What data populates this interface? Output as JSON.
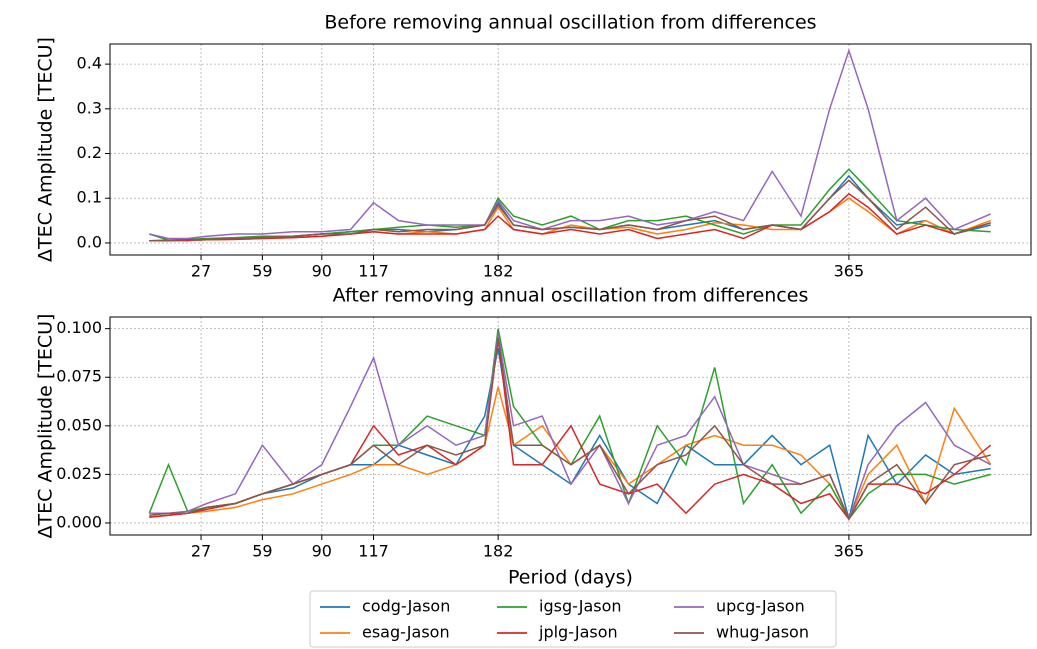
{
  "chart_data": [
    {
      "type": "line",
      "title": "Before removing annual oscillation from differences",
      "ylabel": "ΔTEC Amplitude [TECU]",
      "x": [
        0,
        10,
        20,
        30,
        45,
        59,
        75,
        90,
        105,
        117,
        130,
        145,
        160,
        175,
        182,
        190,
        205,
        220,
        235,
        250,
        265,
        280,
        295,
        310,
        325,
        340,
        355,
        365,
        375,
        390,
        405,
        420,
        439
      ],
      "series": [
        {
          "color": "#1f77b4",
          "values": [
            0.005,
            0.006,
            0.005,
            0.008,
            0.01,
            0.012,
            0.015,
            0.02,
            0.025,
            0.03,
            0.03,
            0.025,
            0.03,
            0.04,
            0.09,
            0.04,
            0.03,
            0.035,
            0.03,
            0.04,
            0.03,
            0.04,
            0.05,
            0.03,
            0.04,
            0.03,
            0.1,
            0.15,
            0.1,
            0.04,
            0.05,
            0.02,
            0.04
          ]
        },
        {
          "color": "#ff7f0e",
          "values": [
            0.005,
            0.005,
            0.006,
            0.007,
            0.008,
            0.01,
            0.012,
            0.015,
            0.02,
            0.025,
            0.02,
            0.025,
            0.02,
            0.03,
            0.08,
            0.03,
            0.02,
            0.04,
            0.03,
            0.035,
            0.02,
            0.03,
            0.045,
            0.04,
            0.03,
            0.03,
            0.07,
            0.1,
            0.07,
            0.02,
            0.05,
            0.02,
            0.05
          ]
        },
        {
          "color": "#2ca02c",
          "values": [
            0.02,
            0.006,
            0.008,
            0.01,
            0.012,
            0.015,
            0.015,
            0.02,
            0.025,
            0.03,
            0.035,
            0.04,
            0.035,
            0.04,
            0.1,
            0.06,
            0.04,
            0.06,
            0.03,
            0.05,
            0.05,
            0.06,
            0.04,
            0.02,
            0.04,
            0.04,
            0.12,
            0.165,
            0.12,
            0.05,
            0.04,
            0.03,
            0.025
          ]
        },
        {
          "color": "#d62728",
          "values": [
            0.005,
            0.005,
            0.006,
            0.007,
            0.008,
            0.01,
            0.012,
            0.015,
            0.02,
            0.025,
            0.02,
            0.02,
            0.02,
            0.03,
            0.06,
            0.03,
            0.02,
            0.03,
            0.02,
            0.03,
            0.01,
            0.02,
            0.03,
            0.01,
            0.04,
            0.03,
            0.07,
            0.11,
            0.08,
            0.02,
            0.04,
            0.02,
            0.045
          ]
        },
        {
          "color": "#9467bd",
          "values": [
            0.02,
            0.01,
            0.01,
            0.015,
            0.02,
            0.02,
            0.025,
            0.025,
            0.03,
            0.09,
            0.05,
            0.04,
            0.04,
            0.04,
            0.095,
            0.05,
            0.03,
            0.05,
            0.05,
            0.06,
            0.04,
            0.05,
            0.07,
            0.05,
            0.16,
            0.06,
            0.3,
            0.43,
            0.3,
            0.05,
            0.1,
            0.03,
            0.065
          ]
        },
        {
          "color": "#8c564b",
          "values": [
            0.005,
            0.006,
            0.007,
            0.008,
            0.01,
            0.012,
            0.015,
            0.02,
            0.02,
            0.03,
            0.025,
            0.03,
            0.03,
            0.04,
            0.085,
            0.04,
            0.03,
            0.035,
            0.03,
            0.04,
            0.03,
            0.05,
            0.06,
            0.03,
            0.04,
            0.03,
            0.1,
            0.14,
            0.1,
            0.03,
            0.08,
            0.02,
            0.045
          ]
        }
      ],
      "xlim": [
        -20.5,
        460
      ],
      "ylim": [
        -0.027,
        0.445
      ],
      "xticks": [
        27,
        59,
        90,
        117,
        182,
        365
      ],
      "yticks": [
        {
          "value": 0,
          "label": "0.0"
        },
        0.1,
        0.2,
        0.3,
        0.4
      ],
      "grid": true
    },
    {
      "type": "line",
      "title": "After removing annual oscillation from differences",
      "ylabel": "ΔTEC Amplitude [TECU]",
      "xlabel": "Period (days)",
      "x": [
        0,
        10,
        20,
        30,
        45,
        59,
        75,
        90,
        105,
        117,
        130,
        145,
        160,
        175,
        182,
        190,
        205,
        220,
        235,
        250,
        265,
        280,
        295,
        310,
        325,
        340,
        355,
        365,
        375,
        390,
        405,
        420,
        439
      ],
      "series": [
        {
          "name": "codg-Jason",
          "color": "#1f77b4",
          "values": [
            0.003,
            0.004,
            0.005,
            0.008,
            0.01,
            0.015,
            0.018,
            0.025,
            0.03,
            0.03,
            0.04,
            0.035,
            0.03,
            0.055,
            0.09,
            0.04,
            0.03,
            0.02,
            0.045,
            0.02,
            0.01,
            0.04,
            0.03,
            0.03,
            0.045,
            0.03,
            0.04,
            0.002,
            0.045,
            0.02,
            0.035,
            0.025,
            0.028
          ]
        },
        {
          "name": "esag-Jason",
          "color": "#ff7f0e",
          "values": [
            0.003,
            0.004,
            0.005,
            0.006,
            0.008,
            0.012,
            0.015,
            0.02,
            0.025,
            0.03,
            0.03,
            0.025,
            0.03,
            0.04,
            0.07,
            0.04,
            0.05,
            0.03,
            0.04,
            0.02,
            0.03,
            0.04,
            0.045,
            0.04,
            0.04,
            0.035,
            0.02,
            0.002,
            0.025,
            0.04,
            0.01,
            0.059,
            0.03
          ]
        },
        {
          "name": "igsg-Jason",
          "color": "#2ca02c",
          "values": [
            0.005,
            0.03,
            0.006,
            0.008,
            0.01,
            0.015,
            0.02,
            0.025,
            0.03,
            0.04,
            0.04,
            0.055,
            0.05,
            0.045,
            0.1,
            0.06,
            0.04,
            0.03,
            0.055,
            0.01,
            0.05,
            0.03,
            0.08,
            0.01,
            0.03,
            0.005,
            0.02,
            0.002,
            0.015,
            0.025,
            0.025,
            0.02,
            0.025
          ]
        },
        {
          "name": "jplg-Jason",
          "color": "#d62728",
          "values": [
            0.003,
            0.004,
            0.005,
            0.007,
            0.01,
            0.015,
            0.02,
            0.025,
            0.03,
            0.05,
            0.035,
            0.04,
            0.03,
            0.04,
            0.095,
            0.03,
            0.03,
            0.05,
            0.02,
            0.015,
            0.02,
            0.005,
            0.02,
            0.025,
            0.02,
            0.01,
            0.015,
            0.002,
            0.02,
            0.02,
            0.015,
            0.025,
            0.04
          ]
        },
        {
          "name": "upcg-Jason",
          "color": "#9467bd",
          "values": [
            0.005,
            0.005,
            0.006,
            0.01,
            0.015,
            0.04,
            0.02,
            0.03,
            0.06,
            0.085,
            0.04,
            0.05,
            0.04,
            0.045,
            0.097,
            0.05,
            0.055,
            0.02,
            0.04,
            0.01,
            0.04,
            0.045,
            0.065,
            0.03,
            0.025,
            0.02,
            0.025,
            0.002,
            0.03,
            0.05,
            0.062,
            0.04,
            0.03
          ]
        },
        {
          "name": "whug-Jason",
          "color": "#8c564b",
          "values": [
            0.004,
            0.005,
            0.005,
            0.008,
            0.01,
            0.015,
            0.02,
            0.025,
            0.03,
            0.04,
            0.03,
            0.04,
            0.035,
            0.04,
            0.095,
            0.04,
            0.04,
            0.03,
            0.04,
            0.015,
            0.03,
            0.035,
            0.05,
            0.03,
            0.02,
            0.02,
            0.025,
            0.002,
            0.02,
            0.03,
            0.01,
            0.03,
            0.035
          ]
        }
      ],
      "xlim": [
        -20.5,
        460
      ],
      "ylim": [
        -0.0062,
        0.106
      ],
      "xticks": [
        27,
        59,
        90,
        117,
        182,
        365
      ],
      "yticks": [
        {
          "value": 0,
          "label": "0.000"
        },
        0.025,
        {
          "value": 0.05,
          "label": "0.050"
        },
        0.075,
        {
          "value": 0.1,
          "label": "0.100"
        }
      ],
      "grid": true
    }
  ]
}
